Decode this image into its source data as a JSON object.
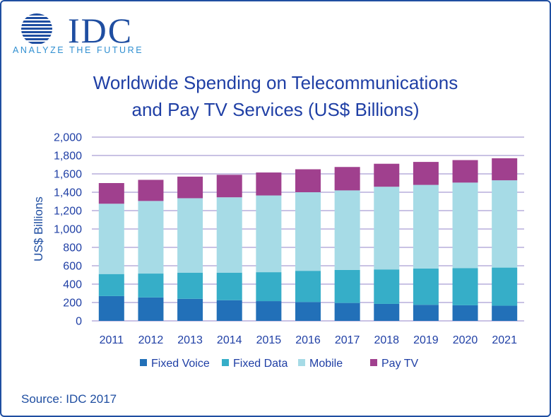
{
  "logo": {
    "word": "IDC",
    "tagline": "ANALYZE THE FUTURE"
  },
  "source": "Source: IDC 2017",
  "colors": {
    "fixed_voice": "#2270b8",
    "fixed_data": "#36aec8",
    "mobile": "#a6dbe6",
    "pay_tv": "#a0408e",
    "gridline": "#b7aedb",
    "text": "#1f3fa5",
    "axis_label": "#1f4ea1"
  },
  "chart_data": {
    "type": "bar",
    "stacked": true,
    "title_line1": "Worldwide Spending on Telecommunications",
    "title_line2": "and Pay TV Services (US$ Billions)",
    "xlabel": "",
    "ylabel": "US$ Billions",
    "ylim": [
      0,
      2000
    ],
    "yticks": [
      0,
      200,
      400,
      600,
      800,
      1000,
      1200,
      1400,
      1600,
      1800,
      2000
    ],
    "ytick_labels": [
      "0",
      "200",
      "400",
      "600",
      "800",
      "1,000",
      "1,200",
      "1,400",
      "1,600",
      "1,800",
      "2,000"
    ],
    "grid": true,
    "legend_position": "bottom",
    "categories": [
      "2011",
      "2012",
      "2013",
      "2014",
      "2015",
      "2016",
      "2017",
      "2018",
      "2019",
      "2020",
      "2021"
    ],
    "series": [
      {
        "name": "Fixed Voice",
        "values": [
          270,
          255,
          240,
          225,
          215,
          205,
          195,
          185,
          175,
          170,
          165
        ]
      },
      {
        "name": "Fixed Data",
        "values": [
          240,
          260,
          285,
          300,
          315,
          340,
          360,
          375,
          395,
          405,
          415
        ]
      },
      {
        "name": "Mobile",
        "values": [
          765,
          790,
          810,
          820,
          835,
          855,
          865,
          900,
          910,
          930,
          950
        ]
      },
      {
        "name": "Pay TV",
        "values": [
          225,
          230,
          235,
          245,
          250,
          250,
          255,
          250,
          250,
          245,
          240
        ]
      }
    ]
  }
}
